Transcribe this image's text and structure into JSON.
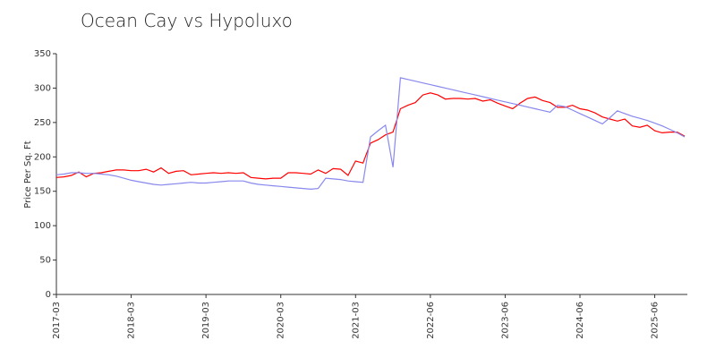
{
  "chart_data": {
    "type": "line",
    "title": "Ocean Cay vs Hypoluxo",
    "y_label": "Price Per Sq. Ft",
    "categories": [
      "2017-03",
      null,
      null,
      null,
      null,
      null,
      null,
      null,
      null,
      null,
      "2018-03",
      null,
      null,
      null,
      null,
      null,
      null,
      null,
      null,
      null,
      "2019-03",
      null,
      null,
      null,
      null,
      null,
      null,
      null,
      null,
      null,
      "2020-03",
      null,
      null,
      null,
      null,
      null,
      null,
      null,
      null,
      null,
      "2021-03",
      null,
      null,
      null,
      null,
      null,
      null,
      null,
      null,
      null,
      "2022-06",
      null,
      null,
      null,
      null,
      null,
      null,
      null,
      null,
      null,
      "2023-06",
      null,
      null,
      null,
      null,
      null,
      null,
      null,
      null,
      null,
      "2024-06",
      null,
      null,
      null,
      null,
      null,
      null,
      null,
      null,
      null,
      "2025-06",
      null,
      null,
      null,
      null
    ],
    "series": [
      {
        "color": "#ff0000",
        "values": [
          170,
          171,
          173,
          178,
          171,
          176,
          177,
          179,
          181,
          181,
          180,
          180,
          182,
          178,
          184,
          176,
          179,
          180,
          174,
          175,
          176,
          177,
          176,
          177,
          176,
          177,
          170,
          169,
          168,
          169,
          169,
          177,
          177,
          176,
          175,
          181,
          176,
          183,
          182,
          173,
          194,
          191,
          220,
          225,
          232,
          236,
          270,
          275,
          279,
          290,
          293,
          290,
          284,
          285,
          285,
          284,
          285,
          281,
          283,
          278,
          274,
          270,
          278,
          285,
          287,
          282,
          279,
          272,
          272,
          275,
          270,
          268,
          264,
          258,
          255,
          252,
          255,
          245,
          243,
          246,
          238,
          235,
          236,
          236,
          230
        ]
      },
      {
        "color": "#8888ee",
        "values": [
          174,
          175,
          177,
          177,
          176,
          176,
          175,
          174,
          172,
          169,
          166,
          164,
          162,
          160,
          159,
          160,
          161,
          162,
          163,
          162,
          162,
          163,
          164,
          165,
          165,
          165,
          162,
          160,
          159,
          158,
          157,
          156,
          155,
          154,
          153,
          154,
          169,
          168,
          167,
          165,
          164,
          163,
          229,
          238,
          246,
          185,
          315,
          312.5,
          310,
          307.5,
          305,
          302.5,
          300,
          297.5,
          295,
          292.5,
          290,
          287.5,
          285,
          282.5,
          280,
          277.5,
          275,
          272.5,
          270,
          267.5,
          265,
          275,
          273,
          268,
          263,
          258,
          253,
          248,
          257,
          267,
          263,
          259,
          256,
          253,
          249,
          245,
          240,
          235,
          229
        ]
      }
    ],
    "ylim": [
      0,
      350
    ],
    "yticks": [
      0,
      50,
      100,
      150,
      200,
      250,
      300,
      350
    ],
    "grid": false
  }
}
